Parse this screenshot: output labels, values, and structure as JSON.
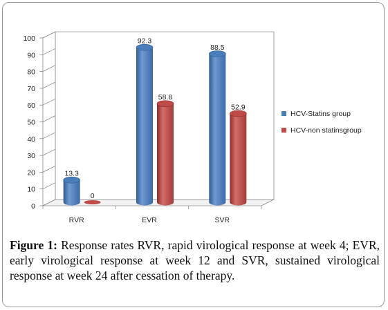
{
  "chart_data": {
    "type": "bar",
    "categories": [
      "RVR",
      "EVR",
      "SVR"
    ],
    "series": [
      {
        "name": "HCV-Statins group",
        "values": [
          13.3,
          92.3,
          88.5
        ],
        "color": "#4a7ebb"
      },
      {
        "name": "HCV-non statinsgroup",
        "values": [
          0,
          58.8,
          52.9
        ],
        "color": "#be4b48"
      }
    ],
    "data_labels": [
      [
        "13.3",
        "92.3",
        "88.5"
      ],
      [
        "0",
        "58.8",
        "52.9"
      ]
    ],
    "yticks": [
      "0",
      "10",
      "20",
      "30",
      "40",
      "50",
      "60",
      "70",
      "80",
      "90",
      "100"
    ],
    "ylim": [
      0,
      100
    ],
    "grid": false,
    "legend_position": "right",
    "style": "3d-cylinder"
  },
  "caption": {
    "label": "Figure 1:",
    "text": " Response rates RVR, rapid virological response at week 4; EVR, early virological response at week 12 and SVR, sustained virological response at week 24 after cessation of therapy."
  }
}
